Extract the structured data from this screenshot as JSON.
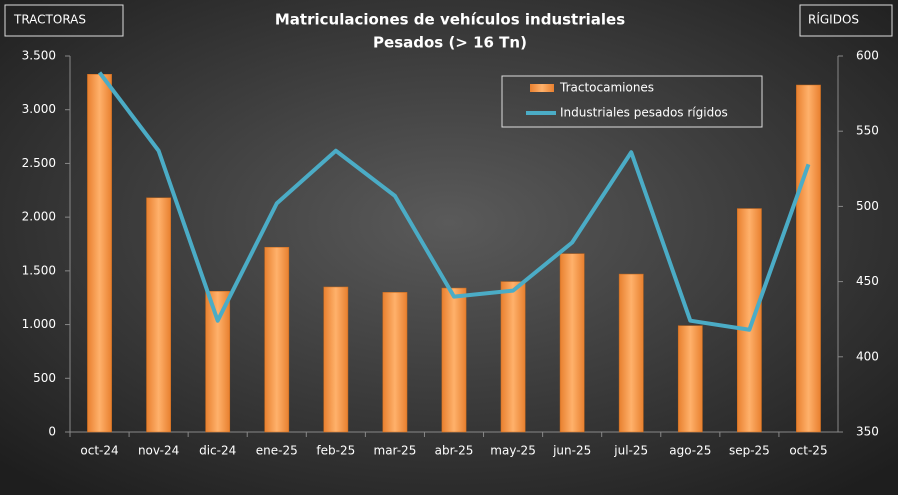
{
  "chart_data": {
    "type": "bar-line",
    "title": "Matriculaciones de vehículos industriales",
    "subtitle": "Pesados (> 16 Tn)",
    "y_label": "TRACTORAS",
    "y2_label": "RÍGIDOS",
    "categories": [
      "oct-24",
      "nov-24",
      "dic-24",
      "ene-25",
      "feb-25",
      "mar-25",
      "abr-25",
      "may-25",
      "jun-25",
      "jul-25",
      "ago-25",
      "sep-25",
      "oct-25"
    ],
    "series": [
      {
        "name": "Tractocamiones",
        "type": "bar",
        "color": "#f79646",
        "axis": "y",
        "values": [
          3330,
          2180,
          1310,
          1720,
          1350,
          1300,
          1340,
          1400,
          1660,
          1470,
          990,
          2080,
          3230
        ]
      },
      {
        "name": "Industriales pesados rígidos",
        "type": "line",
        "color": "#4bacc6",
        "axis": "y2",
        "values": [
          589,
          537,
          424,
          502,
          537,
          507,
          440,
          444,
          476,
          536,
          424,
          418,
          528
        ]
      }
    ],
    "ylim": [
      0,
      3500
    ],
    "yticks": [
      0,
      500,
      {
        "value": 1000,
        "label": "1.000"
      },
      {
        "value": 1500,
        "label": "1.500"
      },
      {
        "value": 2000,
        "label": "2.000"
      },
      {
        "value": 2500,
        "label": "2.500"
      },
      {
        "value": 3000,
        "label": "3.000"
      },
      {
        "value": 3500,
        "label": "3.500"
      }
    ],
    "y2lim": [
      350,
      600
    ],
    "y2ticks": [
      350,
      400,
      450,
      500,
      550,
      600
    ],
    "grid": false,
    "legend": "top-right"
  }
}
